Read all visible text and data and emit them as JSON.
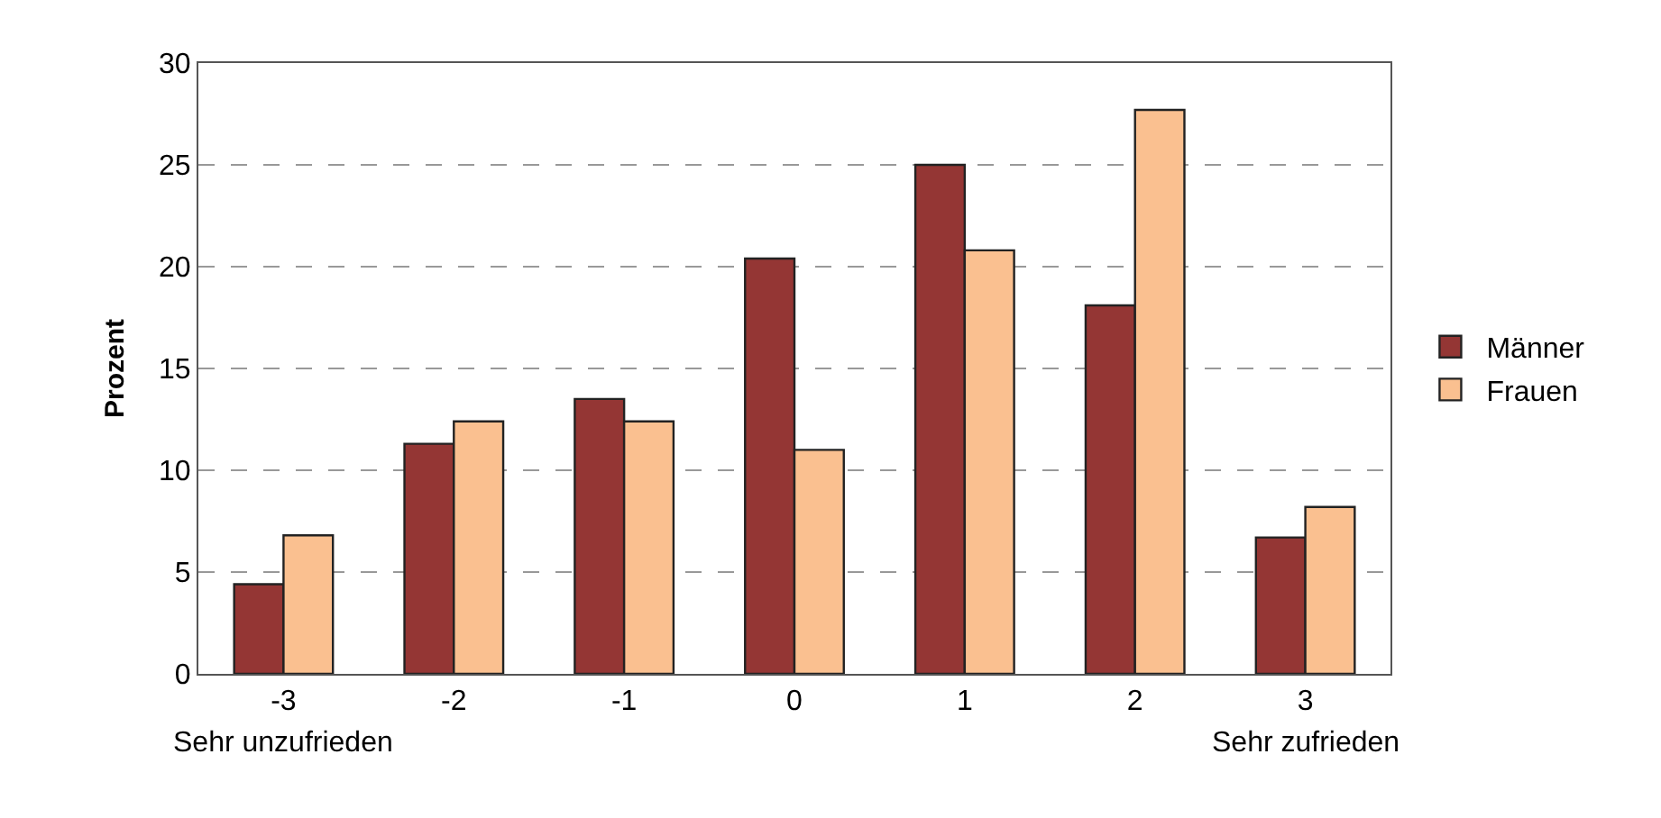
{
  "chart_data": {
    "type": "bar",
    "ylabel": "Prozent",
    "categories": [
      "-3",
      "-2",
      "-1",
      "0",
      "1",
      "2",
      "3"
    ],
    "series": [
      {
        "name": "Männer",
        "color": "#943634",
        "values": [
          4.4,
          11.3,
          13.5,
          20.4,
          25.0,
          18.1,
          6.7
        ]
      },
      {
        "name": "Frauen",
        "color": "#fac090",
        "values": [
          6.8,
          12.4,
          12.4,
          11.0,
          20.8,
          27.7,
          8.2
        ]
      }
    ],
    "ylim": [
      0,
      30
    ],
    "yticks": [
      0,
      5,
      10,
      15,
      20,
      25,
      30
    ],
    "grid": "y",
    "legend": "right",
    "annotations": [
      "Sehr unzufrieden",
      "Sehr zufrieden"
    ]
  }
}
